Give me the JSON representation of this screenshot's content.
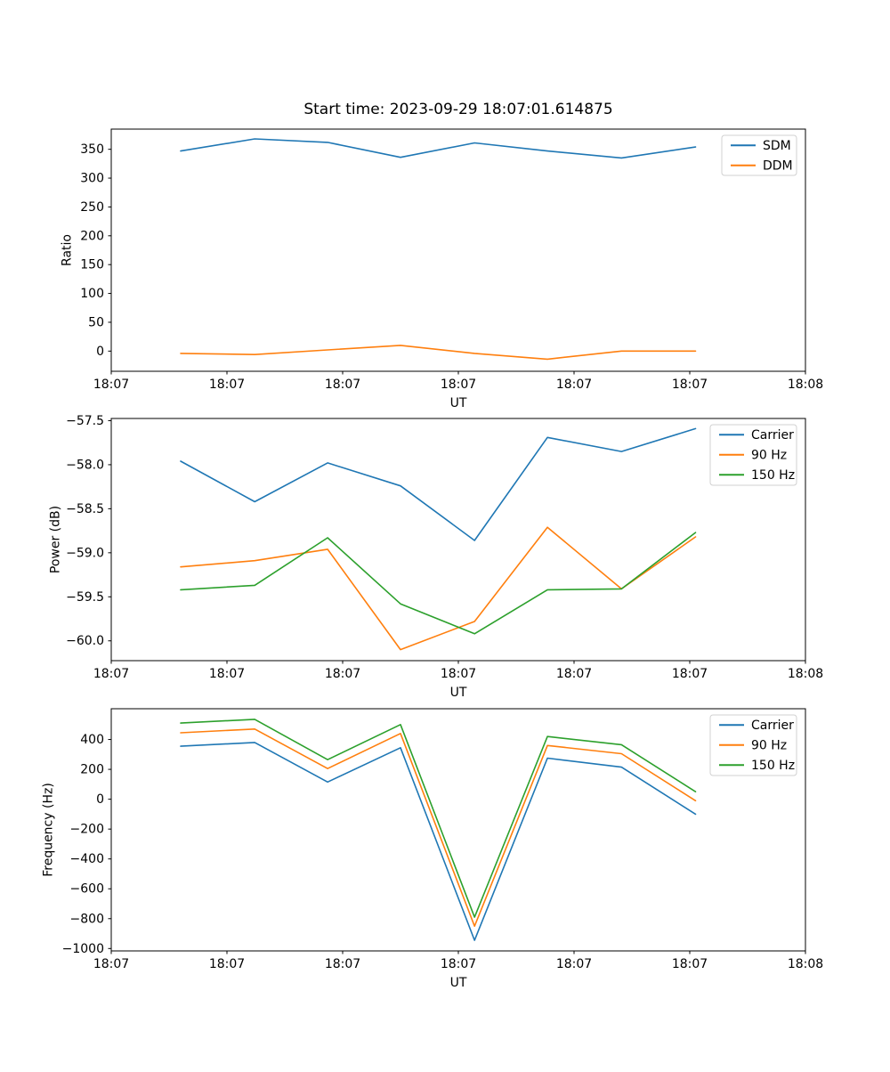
{
  "title": "Start time: 2023-09-29 18:07:01.614875",
  "colors": {
    "blue": "#1f77b4",
    "orange": "#ff7f0e",
    "green": "#2ca02c",
    "legend_border": "#d0d0d0",
    "axis": "#000000"
  },
  "chart_data": [
    {
      "type": "line",
      "name": "ratio",
      "ylabel": "Ratio",
      "xlabel": "UT",
      "x_seconds_after_18_07_00": [
        6.0,
        12.4,
        18.7,
        25.0,
        31.4,
        37.7,
        44.1,
        50.5
      ],
      "xlim_seconds": [
        0,
        60
      ],
      "xtick_labels": [
        "18:07",
        "18:07",
        "18:07",
        "18:07",
        "18:07",
        "18:07",
        "18:08"
      ],
      "ylim": [
        -35,
        385
      ],
      "ytick_values": [
        0,
        50,
        100,
        150,
        200,
        250,
        300,
        350
      ],
      "ytick_labels": [
        "0",
        "50",
        "100",
        "150",
        "200",
        "250",
        "300",
        "350"
      ],
      "grid": false,
      "legend_position": "upper right",
      "series": [
        {
          "name": "SDM",
          "color": "#1f77b4",
          "values": [
            347,
            368,
            362,
            336,
            361,
            347,
            335,
            354
          ]
        },
        {
          "name": "DDM",
          "color": "#ff7f0e",
          "values": [
            -4,
            -6,
            2,
            10,
            -4,
            -14,
            0,
            0
          ]
        }
      ]
    },
    {
      "type": "line",
      "name": "power",
      "ylabel": "Power (dB)",
      "xlabel": "UT",
      "x_seconds_after_18_07_00": [
        6.0,
        12.4,
        18.7,
        25.0,
        31.4,
        37.7,
        44.1,
        50.5
      ],
      "xlim_seconds": [
        0,
        60
      ],
      "xtick_labels": [
        "18:07",
        "18:07",
        "18:07",
        "18:07",
        "18:07",
        "18:07",
        "18:08"
      ],
      "ylim": [
        -60.225,
        -57.475
      ],
      "ytick_values": [
        -60.0,
        -59.5,
        -59.0,
        -58.5,
        -58.0,
        -57.5
      ],
      "ytick_labels": [
        "−60.0",
        "−59.5",
        "−59.0",
        "−58.5",
        "−58.0",
        "−57.5"
      ],
      "grid": false,
      "legend_position": "upper right",
      "series": [
        {
          "name": "Carrier",
          "color": "#1f77b4",
          "values": [
            -57.96,
            -58.42,
            -57.98,
            -58.24,
            -58.86,
            -57.69,
            -57.85,
            -57.59
          ]
        },
        {
          "name": "90 Hz",
          "color": "#ff7f0e",
          "values": [
            -59.16,
            -59.09,
            -58.96,
            -60.1,
            -59.78,
            -58.71,
            -59.41,
            -58.82
          ]
        },
        {
          "name": "150 Hz",
          "color": "#2ca02c",
          "values": [
            -59.42,
            -59.37,
            -58.83,
            -59.58,
            -59.92,
            -59.42,
            -59.41,
            -58.77
          ]
        }
      ]
    },
    {
      "type": "line",
      "name": "frequency",
      "ylabel": "Frequency (Hz)",
      "xlabel": "UT",
      "x_seconds_after_18_07_00": [
        6.0,
        12.4,
        18.7,
        25.0,
        31.4,
        37.7,
        44.1,
        50.5
      ],
      "xlim_seconds": [
        0,
        60
      ],
      "xtick_labels": [
        "18:07",
        "18:07",
        "18:07",
        "18:07",
        "18:07",
        "18:07",
        "18:08"
      ],
      "ylim": [
        -1016,
        606
      ],
      "ytick_values": [
        -1000,
        -800,
        -600,
        -400,
        -200,
        0,
        200,
        400
      ],
      "ytick_labels": [
        "−1000",
        "−800",
        "−600",
        "−400",
        "−200",
        "0",
        "200",
        "400"
      ],
      "grid": false,
      "legend_position": "upper right",
      "series": [
        {
          "name": "Carrier",
          "color": "#1f77b4",
          "values": [
            355,
            380,
            115,
            345,
            -945,
            275,
            215,
            -100
          ]
        },
        {
          "name": "90 Hz",
          "color": "#ff7f0e",
          "values": [
            445,
            470,
            205,
            440,
            -850,
            360,
            305,
            -10
          ]
        },
        {
          "name": "150 Hz",
          "color": "#2ca02c",
          "values": [
            510,
            535,
            265,
            500,
            -790,
            420,
            365,
            50
          ]
        }
      ]
    }
  ]
}
